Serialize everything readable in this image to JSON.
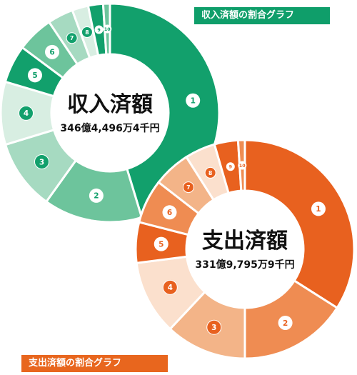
{
  "labels": {
    "income_legend": "収入済額の割合グラフ",
    "expense_legend": "支出済額の割合グラフ"
  },
  "chart_data": [
    {
      "type": "pie",
      "id": "income",
      "title": "収入済額",
      "total": "346億4,496万4千円",
      "categories": [
        "①",
        "②",
        "③",
        "④",
        "⑤",
        "⑥",
        "⑦",
        "⑧",
        "⑨",
        "⑩"
      ],
      "values": [
        45.3,
        14.6,
        10.4,
        9.3,
        5.6,
        5.4,
        3.8,
        2.4,
        2.2,
        1.0
      ],
      "colors": [
        "#12a06c",
        "#6dc49c",
        "#a6dac1",
        "#d8eee2",
        "#12a06c",
        "#6dc49c",
        "#a6dac1",
        "#d8eee2",
        "#12a06c",
        "#6dc49c"
      ]
    },
    {
      "type": "pie",
      "id": "expense",
      "title": "支出済額",
      "total": "331億9,795万9千円",
      "categories": [
        "①",
        "②",
        "③",
        "④",
        "⑤",
        "⑥",
        "⑦",
        "⑧",
        "⑨",
        "⑩"
      ],
      "values": [
        34.0,
        16.0,
        12.0,
        11.0,
        6.0,
        6.5,
        5.5,
        4.5,
        3.5,
        1.0
      ],
      "colors": [
        "#e8611f",
        "#ef8c52",
        "#f3b488",
        "#fbe0cd",
        "#e8611f",
        "#ef8c52",
        "#f3b488",
        "#fbe0cd",
        "#e8611f",
        "#ef8c52"
      ]
    }
  ]
}
